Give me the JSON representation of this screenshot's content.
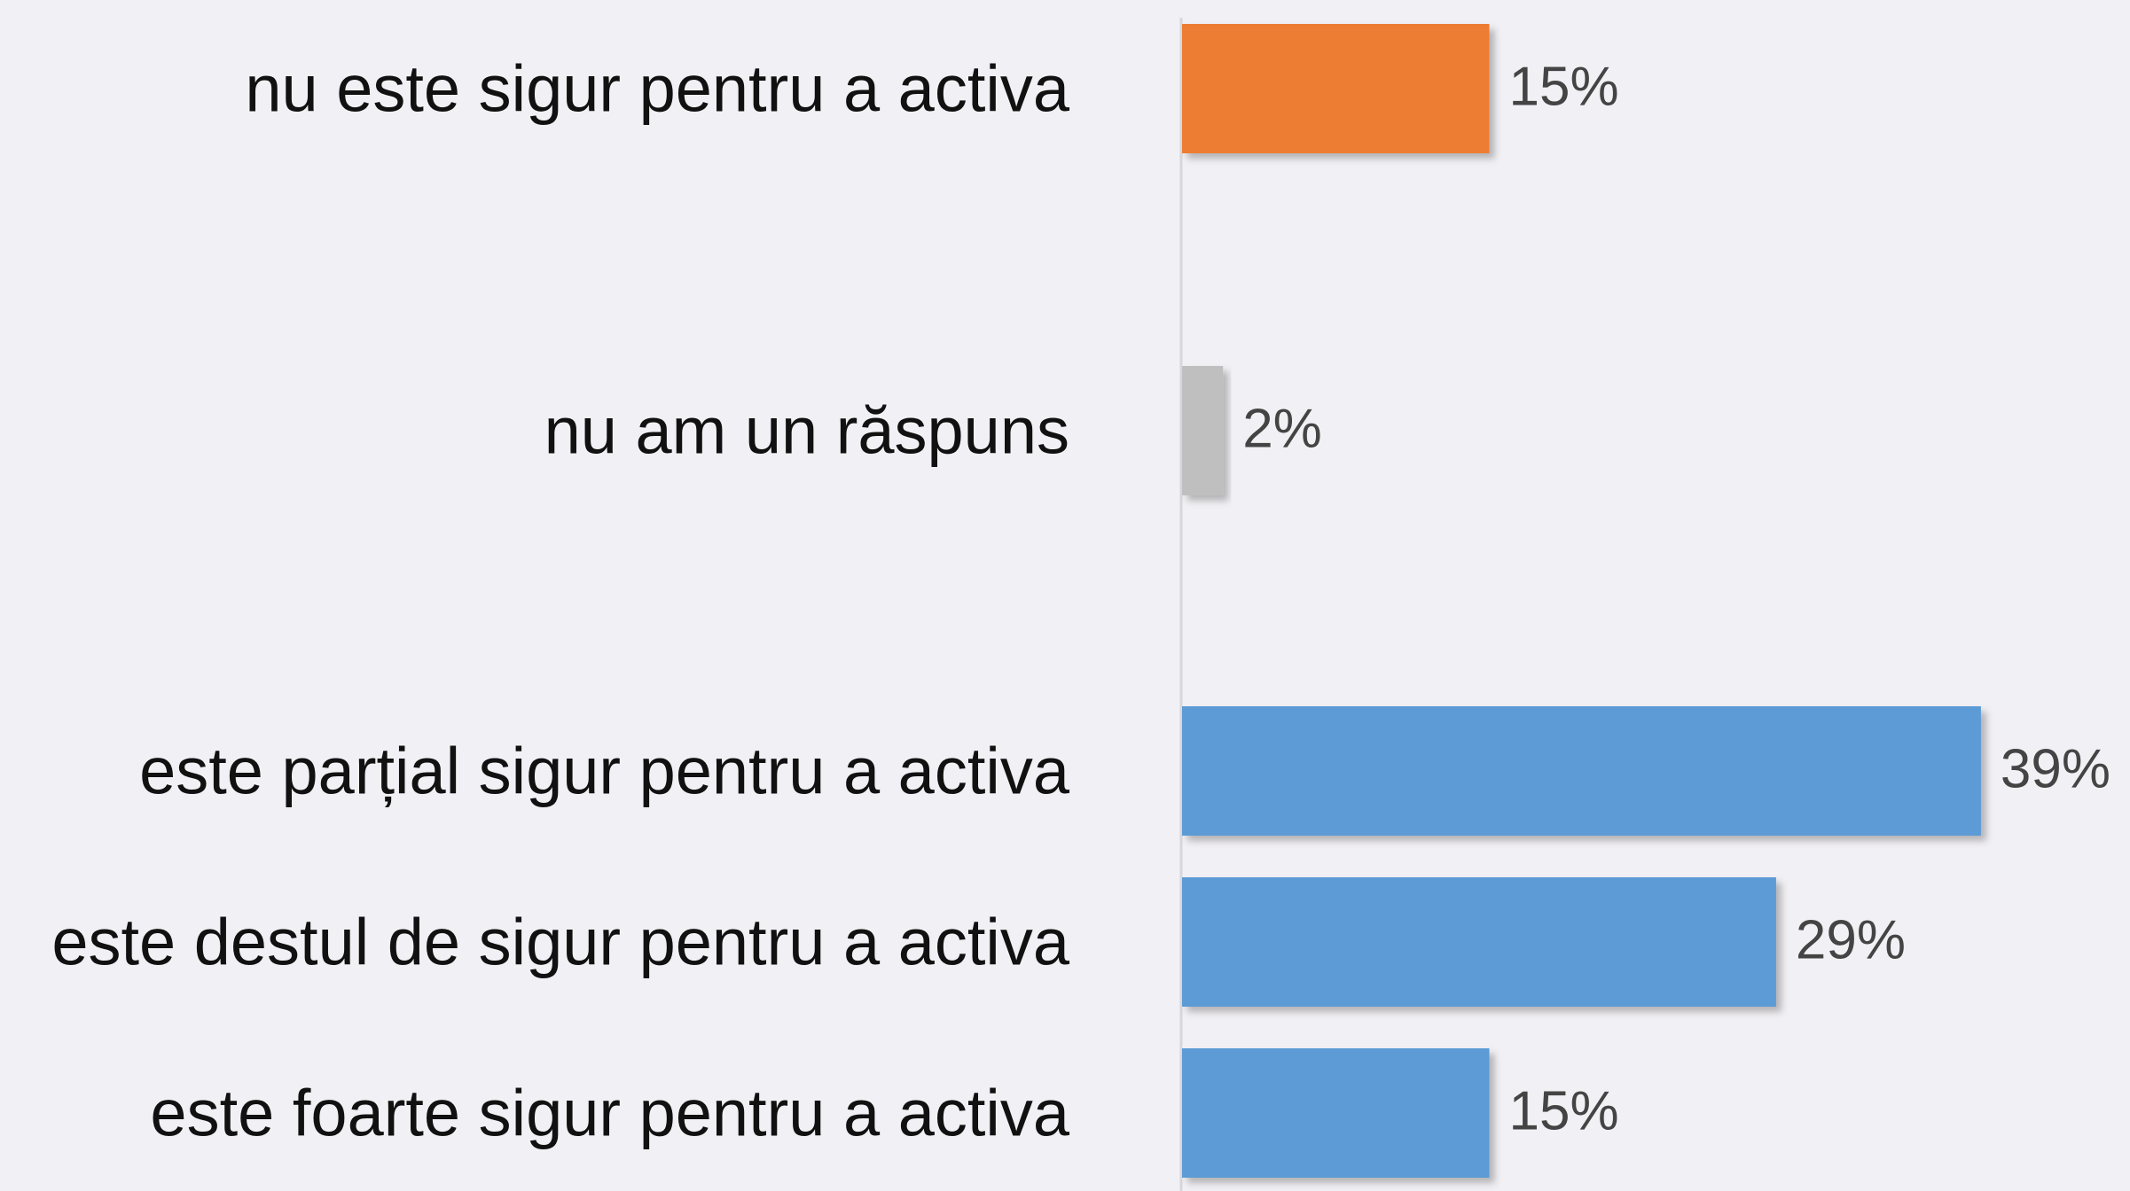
{
  "chart_data": {
    "type": "bar",
    "orientation": "horizontal",
    "categories": [
      "nu este sigur pentru a activa",
      "nu am un răspuns",
      "este parțial sigur pentru a activa",
      "este destul de sigur pentru a activa",
      "este foarte sigur pentru a activa"
    ],
    "values": [
      15,
      2,
      39,
      29,
      15
    ],
    "value_labels": [
      "15%",
      "2%",
      "39%",
      "29%",
      "15%"
    ],
    "colors": [
      "#ed7d31",
      "#bfbfbf",
      "#5b9bd5",
      "#5b9bd5",
      "#5b9bd5"
    ]
  }
}
